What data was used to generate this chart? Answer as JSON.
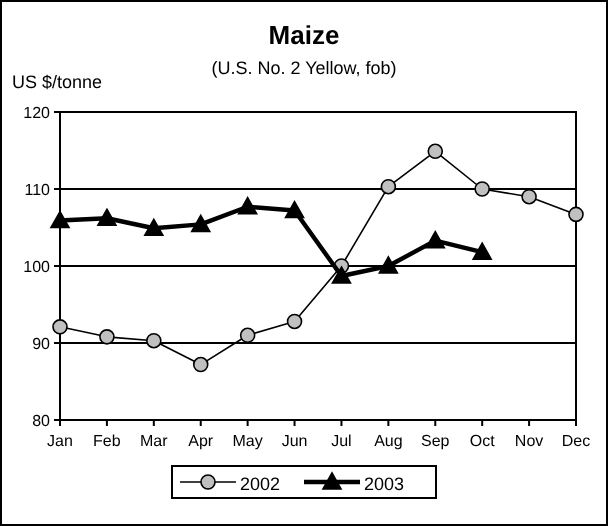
{
  "chart_data": {
    "type": "line",
    "title": "Maize",
    "subtitle": "(U.S. No. 2 Yellow, fob)",
    "ylabel": "US $/tonne",
    "categories": [
      "Jan",
      "Feb",
      "Mar",
      "Apr",
      "May",
      "Jun",
      "Jul",
      "Aug",
      "Sep",
      "Oct",
      "Nov",
      "Dec"
    ],
    "series": [
      {
        "name": "2002",
        "color": "#c0c0c0",
        "marker": "circle",
        "values": [
          92.1,
          90.8,
          90.3,
          87.2,
          91,
          92.8,
          100,
          110.3,
          114.9,
          110,
          109,
          106.7
        ]
      },
      {
        "name": "2003",
        "color": "#000000",
        "marker": "triangle",
        "values": [
          105.9,
          106.2,
          104.9,
          105.4,
          107.7,
          107.2,
          98.7,
          100,
          103.3,
          101.8,
          null,
          null
        ]
      }
    ],
    "ylim": [
      80,
      120
    ],
    "yticks": [
      80,
      90,
      100,
      110,
      120
    ],
    "grid": "y",
    "legend": "bottom"
  }
}
